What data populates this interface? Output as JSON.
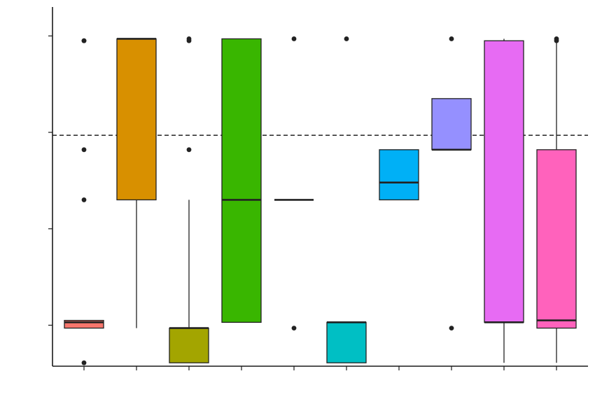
{
  "chart_data": {
    "type": "box",
    "title": "",
    "xlabel": "",
    "ylabel": "",
    "ylim": [
      0.575,
      4.3
    ],
    "y_ticks": [
      1,
      2,
      3,
      4
    ],
    "reference_line": {
      "y": 2.97,
      "style": "dashed"
    },
    "grid": false,
    "legend": "none",
    "boxes": [
      {
        "color": "#F8766D",
        "q1": 0.97,
        "median": 1.03,
        "q3": 1.05,
        "whisker_low": 0.97,
        "whisker_high": 1.05,
        "outliers": [
          0.61,
          2.3,
          2.82,
          3.95,
          3.95
        ]
      },
      {
        "color": "#D89000",
        "q1": 2.3,
        "median": 3.97,
        "q3": 3.97,
        "whisker_low": 0.97,
        "whisker_high": 3.97,
        "outliers": []
      },
      {
        "color": "#A3A500",
        "q1": 0.61,
        "median": 0.97,
        "q3": 0.97,
        "whisker_low": 0.61,
        "whisker_high": 2.3,
        "outliers": [
          2.82,
          3.95,
          3.97
        ]
      },
      {
        "color": "#39B600",
        "q1": 1.03,
        "median": 2.3,
        "q3": 3.97,
        "whisker_low": 1.03,
        "whisker_high": 3.97,
        "outliers": []
      },
      {
        "color": "#00BF7D",
        "q1": 2.3,
        "median": 2.3,
        "q3": 2.3,
        "whisker_low": 2.3,
        "whisker_high": 2.3,
        "outliers": [
          0.97,
          3.97
        ]
      },
      {
        "color": "#00BFC4",
        "q1": 0.61,
        "median": 1.03,
        "q3": 1.03,
        "whisker_low": 0.61,
        "whisker_high": 1.03,
        "outliers": [
          3.97
        ]
      },
      {
        "color": "#00B0F6",
        "q1": 2.3,
        "median": 2.48,
        "q3": 2.82,
        "whisker_low": 2.3,
        "whisker_high": 2.82,
        "outliers": []
      },
      {
        "color": "#9590FF",
        "q1": 2.82,
        "median": 2.82,
        "q3": 3.35,
        "whisker_low": 2.82,
        "whisker_high": 3.35,
        "outliers": [
          0.97,
          3.97
        ]
      },
      {
        "color": "#E76BF3",
        "q1": 1.03,
        "median": 1.03,
        "q3": 3.95,
        "whisker_low": 0.61,
        "whisker_high": 3.97,
        "outliers": []
      },
      {
        "color": "#FF62BC",
        "q1": 0.97,
        "median": 1.05,
        "q3": 2.82,
        "whisker_low": 0.61,
        "whisker_high": 3.95,
        "outliers": [
          3.95,
          3.97
        ]
      }
    ]
  }
}
